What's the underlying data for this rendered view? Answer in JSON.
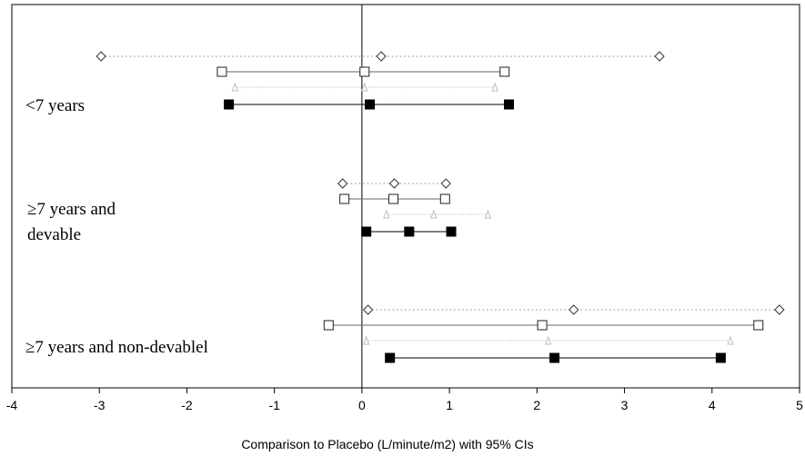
{
  "chart_data": {
    "type": "forest",
    "title": "",
    "xlabel": "Comparison to Placebo (L/minute/m2) with 95% CIs",
    "ylabel": "",
    "xlim": [
      -4,
      5
    ],
    "xticks": [
      "-4",
      "-3",
      "-2",
      "-1",
      "0",
      "1",
      "2",
      "3",
      "4",
      "5"
    ],
    "reference_line_x": 0,
    "grid": false,
    "legend": "none",
    "series_styles": [
      {
        "marker": "diamond-open",
        "line": "dotted-gray"
      },
      {
        "marker": "square-open",
        "line": "solid-gray"
      },
      {
        "marker": "triangle-open",
        "line": "dotted-light"
      },
      {
        "marker": "square-filled",
        "line": "solid-black"
      }
    ],
    "groups": [
      {
        "label_lines": [
          "<7 years"
        ],
        "rows": [
          {
            "style": 0,
            "lower": -2.98,
            "estimate": 0.22,
            "upper": 3.4
          },
          {
            "style": 1,
            "lower": -1.6,
            "estimate": 0.03,
            "upper": 1.63
          },
          {
            "style": 2,
            "lower": -1.45,
            "estimate": 0.03,
            "upper": 1.52
          },
          {
            "style": 3,
            "lower": -1.52,
            "estimate": 0.09,
            "upper": 1.68
          }
        ]
      },
      {
        "label_lines": [
          "≥7 years and",
          "devable"
        ],
        "rows": [
          {
            "style": 0,
            "lower": -0.22,
            "estimate": 0.37,
            "upper": 0.96
          },
          {
            "style": 1,
            "lower": -0.2,
            "estimate": 0.36,
            "upper": 0.95
          },
          {
            "style": 2,
            "lower": 0.28,
            "estimate": 0.82,
            "upper": 1.44
          },
          {
            "style": 3,
            "lower": 0.05,
            "estimate": 0.54,
            "upper": 1.02
          }
        ]
      },
      {
        "label_lines": [
          "≥7 years and non-devablel"
        ],
        "rows": [
          {
            "style": 0,
            "lower": 0.07,
            "estimate": 2.42,
            "upper": 4.77
          },
          {
            "style": 1,
            "lower": -0.38,
            "estimate": 2.06,
            "upper": 4.53
          },
          {
            "style": 2,
            "lower": 0.05,
            "estimate": 2.13,
            "upper": 4.21
          },
          {
            "style": 3,
            "lower": 0.32,
            "estimate": 2.2,
            "upper": 4.1
          }
        ]
      }
    ]
  }
}
